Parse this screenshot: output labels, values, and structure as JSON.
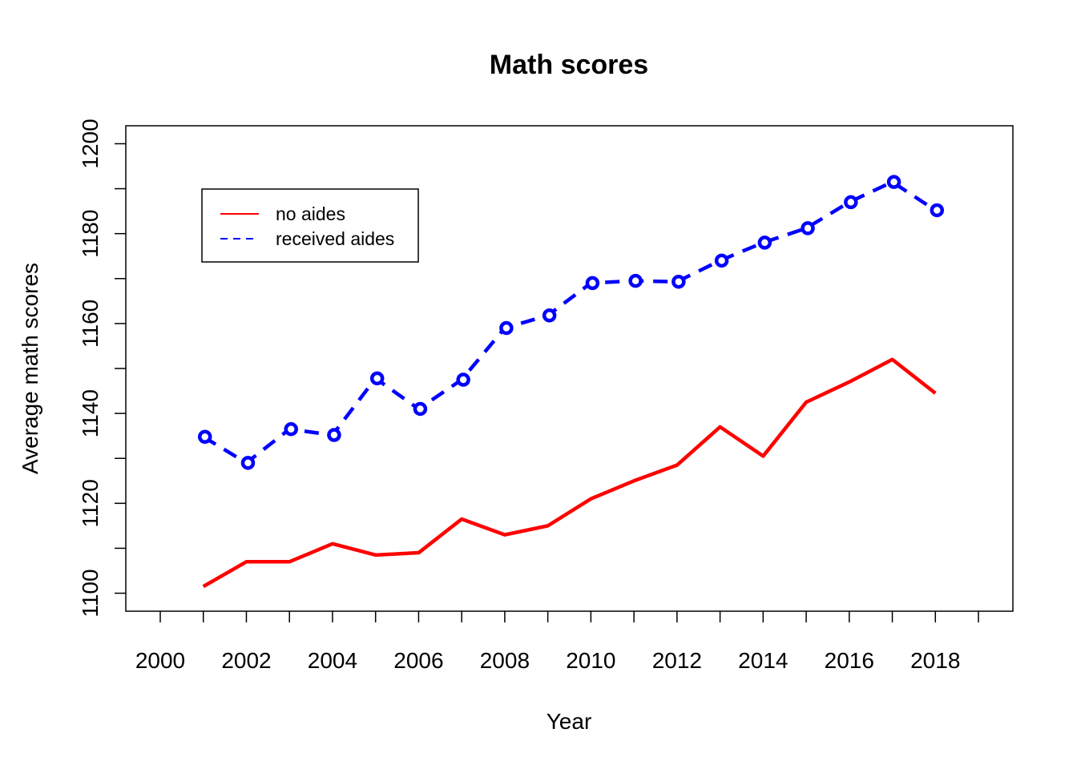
{
  "chart_data": {
    "type": "line",
    "title": "Math scores",
    "xlabel": "Year",
    "ylabel": "Average math scores",
    "xlim": [
      1999.2,
      2019.8
    ],
    "ylim": [
      1096,
      1204
    ],
    "x_ticks": [
      2000,
      2001,
      2002,
      2003,
      2004,
      2005,
      2006,
      2007,
      2008,
      2009,
      2010,
      2011,
      2012,
      2013,
      2014,
      2015,
      2016,
      2017,
      2018,
      2019
    ],
    "x_tick_labels": [
      "2000",
      "",
      "2002",
      "",
      "2004",
      "",
      "2006",
      "",
      "2008",
      "",
      "2010",
      "",
      "2012",
      "",
      "2014",
      "",
      "2016",
      "",
      "2018",
      ""
    ],
    "y_ticks": [
      1100,
      1110,
      1120,
      1130,
      1140,
      1150,
      1160,
      1170,
      1180,
      1190,
      1200
    ],
    "y_tick_labels": [
      "1100",
      "",
      "1120",
      "",
      "1140",
      "",
      "1160",
      "",
      "1180",
      "",
      "1200"
    ],
    "grid": false,
    "legend": {
      "position": "top-left"
    },
    "x": [
      2001,
      2002,
      2003,
      2004,
      2005,
      2006,
      2007,
      2008,
      2009,
      2010,
      2011,
      2012,
      2013,
      2014,
      2015,
      2016,
      2017,
      2018
    ],
    "series": [
      {
        "name": "no aides",
        "color": "#ff0000",
        "style": "solid",
        "markers": false,
        "values": [
          1101.5,
          1107,
          1107,
          1111,
          1108.5,
          1109,
          1116.5,
          1113,
          1115,
          1121,
          1125,
          1128.5,
          1137,
          1130.5,
          1142.5,
          1147,
          1152,
          1144.5
        ]
      },
      {
        "name": "received aides",
        "color": "#0000ff",
        "style": "dashed",
        "markers": true,
        "values": [
          1134.8,
          1129,
          1136.5,
          1135.2,
          1147.8,
          1141,
          1147.5,
          1159,
          1161.8,
          1169,
          1169.5,
          1169.3,
          1174,
          1178,
          1181.2,
          1187,
          1191.5,
          1185.2
        ]
      }
    ]
  }
}
